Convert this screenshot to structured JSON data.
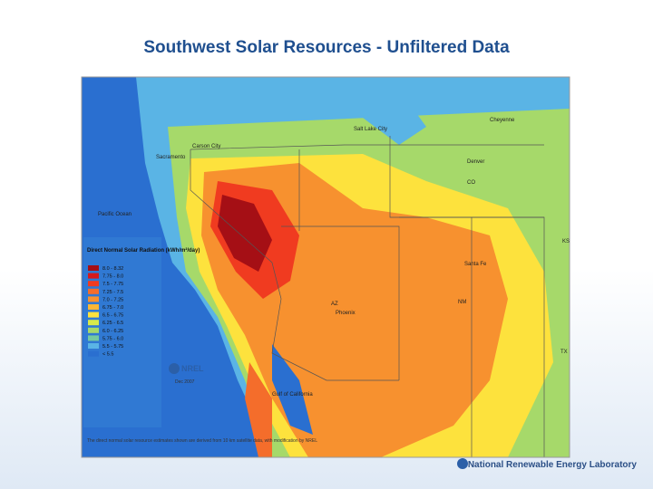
{
  "title": "Southwest Solar Resources - Unfiltered Data",
  "map": {
    "places": [
      "Carson City",
      "Sacramento",
      "Salt Lake City",
      "Cheyenne",
      "Denver",
      "Santa Fe",
      "Phoenix",
      "Pacific Ocean",
      "Gulf of California"
    ],
    "states": [
      "CO",
      "NM",
      "AZ",
      "TX",
      "KS"
    ],
    "legend": {
      "title": "Direct Normal Solar Radiation (kWh/m²/day)",
      "items": [
        {
          "label": "8.0 - 8.32",
          "color": "#a50f15"
        },
        {
          "label": "7.75 - 8.0",
          "color": "#d7191c"
        },
        {
          "label": "7.5 - 7.75",
          "color": "#f03b20"
        },
        {
          "label": "7.25 - 7.5",
          "color": "#f46d2b"
        },
        {
          "label": "7.0 - 7.25",
          "color": "#f7912f"
        },
        {
          "label": "6.75 - 7.0",
          "color": "#fbb735"
        },
        {
          "label": "6.5 - 6.75",
          "color": "#fde23d"
        },
        {
          "label": "6.25 - 6.5",
          "color": "#d8ea4a"
        },
        {
          "label": "6.0 - 6.25",
          "color": "#a6d96a"
        },
        {
          "label": "5.75 - 6.0",
          "color": "#74c9a0"
        },
        {
          "label": "5.5 - 5.75",
          "color": "#5ab4e5"
        },
        {
          "label": "< 5.5",
          "color": "#2a6fd0"
        }
      ]
    },
    "logo": "NREL",
    "date": "Dec 2007",
    "note": "The direct normal solar resource estimates shown are derived from 10 km satellite data, with modification by NREL"
  },
  "footer": "National Renewable Energy Laboratory"
}
